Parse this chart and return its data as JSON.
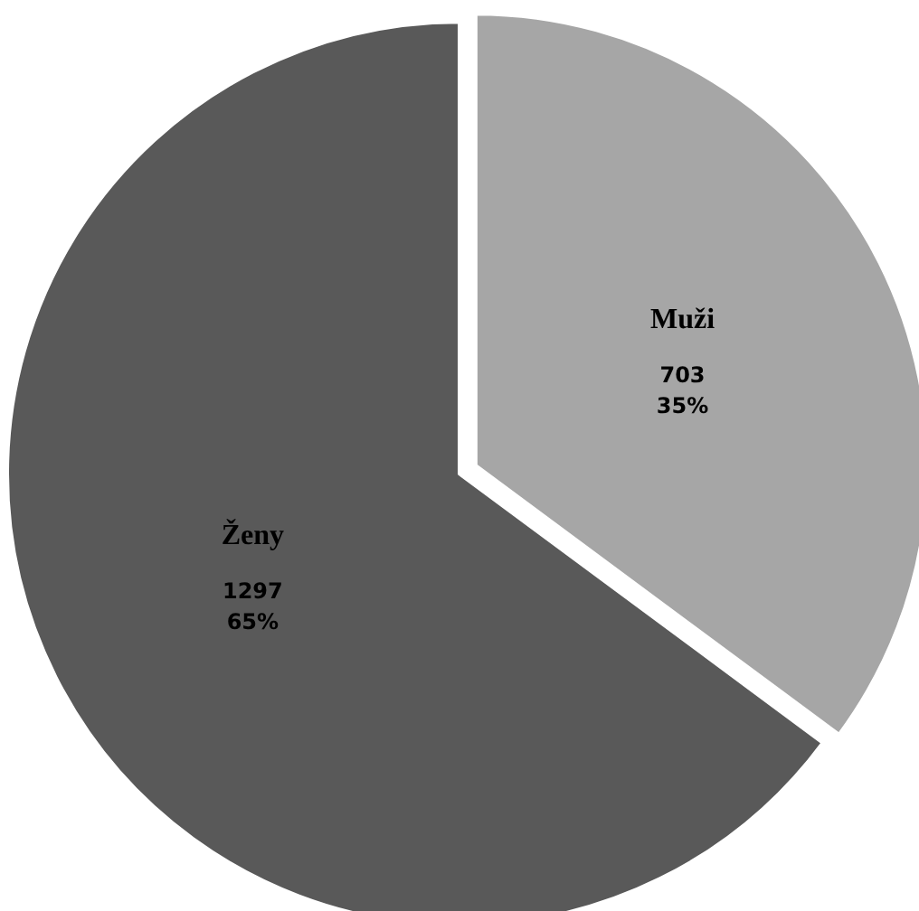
{
  "chart_data": {
    "type": "pie",
    "categories": [
      "Muži",
      "Ženy"
    ],
    "values": [
      703,
      1297
    ],
    "colors": [
      "#a6a6a6",
      "#595959"
    ],
    "value_labels": [
      "703\n35%",
      "1297\n65%"
    ],
    "legend": false
  }
}
